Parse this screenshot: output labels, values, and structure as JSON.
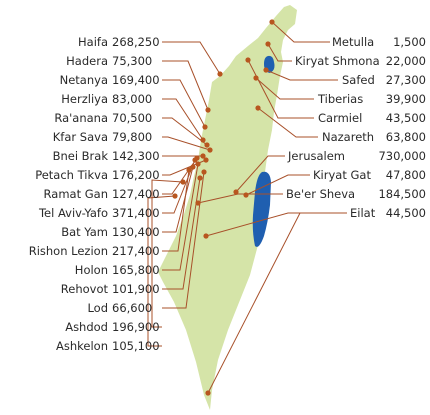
{
  "colors": {
    "land": "#d5e4a8",
    "water": "#1f5fb0",
    "leader": "#a8502a",
    "dot": "#b8561f",
    "text": "#2a2a2a"
  },
  "left_cities": [
    {
      "name": "Haifa",
      "population": "268,250"
    },
    {
      "name": "Hadera",
      "population": "75,300"
    },
    {
      "name": "Netanya",
      "population": "169,400"
    },
    {
      "name": "Herzliya",
      "population": "83,000"
    },
    {
      "name": "Ra'anana",
      "population": "70,500"
    },
    {
      "name": "Kfar Sava",
      "population": "79,800"
    },
    {
      "name": "Bnei Brak",
      "population": "142,300"
    },
    {
      "name": "Petach Tikva",
      "population": "176,200"
    },
    {
      "name": "Ramat Gan",
      "population": "127,400"
    },
    {
      "name": "Tel Aviv-Yafo",
      "population": "371,400"
    },
    {
      "name": "Bat Yam",
      "population": "130,400"
    },
    {
      "name": "Rishon Lezion",
      "population": "217,400"
    },
    {
      "name": "Holon",
      "population": "165,800"
    },
    {
      "name": "Rehovot",
      "population": "101,900"
    },
    {
      "name": "Lod",
      "population": "66,600"
    },
    {
      "name": "Ashdod",
      "population": "196,900"
    },
    {
      "name": "Ashkelon",
      "population": "105,100"
    }
  ],
  "right_cities": [
    {
      "name": "Metulla",
      "population": "1,500"
    },
    {
      "name": "Kiryat Shmona",
      "population": "22,000"
    },
    {
      "name": "Safed",
      "population": "27,300"
    },
    {
      "name": "Tiberias",
      "population": "39,900"
    },
    {
      "name": "Carmiel",
      "population": "43,500"
    },
    {
      "name": "Nazareth",
      "population": "63,800"
    },
    {
      "name": "Jerusalem",
      "population": "730,000"
    },
    {
      "name": "Kiryat Gat",
      "population": "47,800"
    },
    {
      "name": "Be'er Sheva",
      "population": "184,500"
    },
    {
      "name": "Eilat",
      "population": "44,500"
    }
  ]
}
